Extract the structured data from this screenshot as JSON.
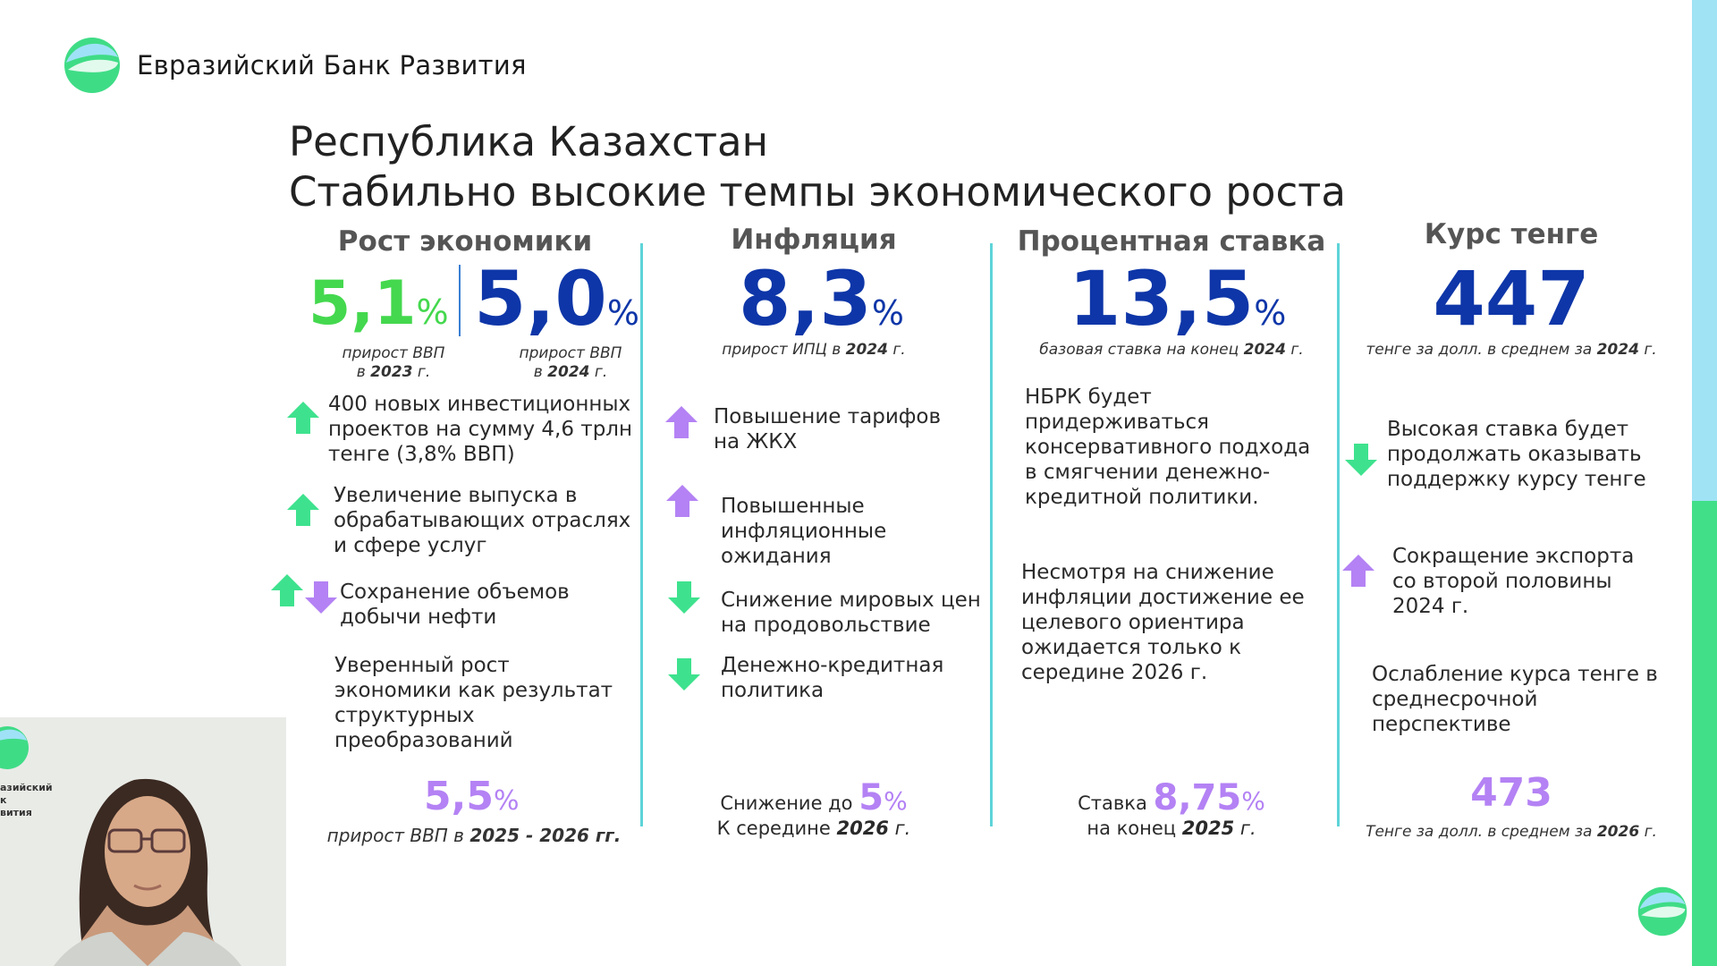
{
  "brand": {
    "name": "Евразийский Банк Развития"
  },
  "slide": {
    "title_line1": "Республика Казахстан",
    "title_line2": "Стабильно высокие темпы экономического роста"
  },
  "colors": {
    "navy": "#0e36a8",
    "green": "#44d84e",
    "violet": "#b482f4",
    "arrow_green": "#3ee28e",
    "divider": "#5ed4d8"
  },
  "columns": {
    "growth": {
      "heading": "Рост экономики",
      "value_2023": "5,1",
      "value_2024": "5,0",
      "pct": "%",
      "cap_2023_a": "прирост ВВП",
      "cap_2023_b": "в",
      "cap_2023_year": "2023",
      "cap_2023_c": "г.",
      "cap_2024_a": "прирост ВВП",
      "cap_2024_b": "в",
      "cap_2024_year": "2024",
      "cap_2024_c": "г.",
      "items": [
        {
          "text": "400 новых инвестиционных проектов на сумму 4,6 трлн тенге (3,8% ВВП)",
          "icon": "arrow-up-green-icon"
        },
        {
          "text": "Увеличение выпуска в обрабатывающих отраслях и сфере услуг",
          "icon": "arrow-up-green-icon"
        },
        {
          "text": "Сохранение объемов добычи нефти",
          "icon": "arrow-up-down-icon"
        },
        {
          "text": "Уверенный рост экономики как результат структурных преобразований",
          "icon": ""
        }
      ],
      "forecast_value": "5,5",
      "forecast_pct": "%",
      "forecast_cap_a": "прирост ВВП в",
      "forecast_cap_b": "2025 - 2026 гг."
    },
    "inflation": {
      "heading": "Инфляция",
      "value": "8,3",
      "pct": "%",
      "cap_a": "прирост ИПЦ в",
      "cap_year": "2024",
      "cap_c": "г.",
      "items": [
        {
          "text": "Повышение тарифов на ЖКХ",
          "icon": "arrow-up-violet-icon"
        },
        {
          "text": "Повышенные инфляционные ожидания",
          "icon": "arrow-up-violet-icon"
        },
        {
          "text": "Снижение мировых цен на продовольствие",
          "icon": "arrow-down-green-icon"
        },
        {
          "text": "Денежно-кредитная политика",
          "icon": "arrow-down-green-icon"
        }
      ],
      "forecast_prefix": "Снижение до",
      "forecast_value": "5",
      "forecast_pct": "%",
      "forecast_line2_a": "К середине",
      "forecast_line2_b": "2026",
      "forecast_line2_c": "г."
    },
    "rate": {
      "heading": "Процентная ставка",
      "value": "13,5",
      "pct": "%",
      "cap_a": "базовая ставка на конец",
      "cap_year": "2024",
      "cap_c": "г.",
      "items": [
        {
          "text": "НБРК будет придерживаться консервативного подхода в смягчении денежно-кредитной политики."
        },
        {
          "text": "Несмотря на снижение инфляции достижение ее целевого ориентира ожидается только к середине 2026 г."
        }
      ],
      "forecast_prefix": "Ставка",
      "forecast_value": "8,75",
      "forecast_pct": "%",
      "forecast_line2_a": "на конец",
      "forecast_line2_b": "2025",
      "forecast_line2_c": "г."
    },
    "tenge": {
      "heading": "Курс тенге",
      "value": "447",
      "cap_a": "тенге за долл. в среднем за",
      "cap_year": "2024",
      "cap_c": "г.",
      "items": [
        {
          "text": "Высокая ставка будет продолжать оказывать поддержку курсу тенге",
          "icon": "arrow-down-green-icon"
        },
        {
          "text": "Сокращение экспорта со второй половины 2024 г.",
          "icon": "arrow-up-violet-icon"
        },
        {
          "text": "Ослабление курса тенге в среднесрочной перспективе",
          "icon": ""
        }
      ],
      "forecast_value": "473",
      "forecast_cap_a": "Тенге за долл. в среднем за",
      "forecast_cap_b": "2026",
      "forecast_cap_c": "г."
    }
  },
  "webcam": {
    "logo_text_1": "азийский",
    "logo_text_2": "к",
    "logo_text_3": "вития"
  }
}
